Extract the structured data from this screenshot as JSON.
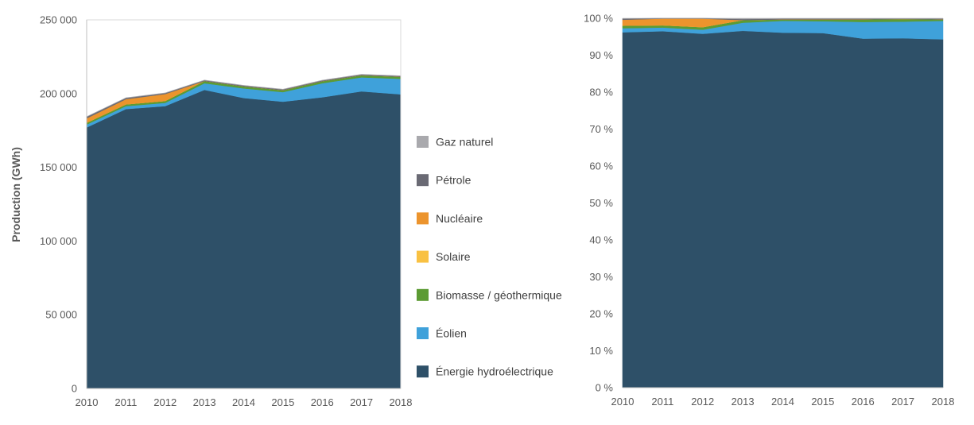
{
  "chart_data": [
    {
      "type": "area",
      "stacked": true,
      "title": "",
      "xlabel": "",
      "ylabel": "Production (GWh)",
      "ylim": [
        0,
        250000
      ],
      "grid": false,
      "x": [
        2010,
        2011,
        2012,
        2013,
        2014,
        2015,
        2016,
        2017,
        2018
      ],
      "x_tick_labels": [
        "2010",
        "2011",
        "2012",
        "2013",
        "2014",
        "2015",
        "2016",
        "2017",
        "2018"
      ],
      "y_ticks": [
        0,
        50000,
        100000,
        150000,
        200000,
        250000
      ],
      "y_tick_labels": [
        "0",
        "50 000",
        "100 000",
        "150 000",
        "200 000",
        "250 000"
      ],
      "series": [
        {
          "name": "Énergie hydroélectrique",
          "color": "#2e5068",
          "values": [
            177000,
            189500,
            191500,
            202500,
            197000,
            194500,
            197500,
            201500,
            199500
          ]
        },
        {
          "name": "Éolien",
          "color": "#3fa1da",
          "values": [
            2000,
            2000,
            2200,
            4500,
            6500,
            6500,
            9500,
            9500,
            10500
          ]
        },
        {
          "name": "Biomasse / géothermique",
          "color": "#5c9b33",
          "values": [
            1200,
            1200,
            1300,
            1500,
            1400,
            1300,
            1400,
            1400,
            1400
          ]
        },
        {
          "name": "Solaire",
          "color": "#f9c142",
          "values": [
            0,
            0,
            0,
            0,
            0,
            0,
            0,
            0,
            0
          ]
        },
        {
          "name": "Nucléaire",
          "color": "#ec942d",
          "values": [
            3000,
            3500,
            4700,
            0,
            0,
            0,
            0,
            0,
            0
          ]
        },
        {
          "name": "Pétrole",
          "color": "#6a6a74",
          "values": [
            1000,
            800,
            600,
            500,
            500,
            500,
            500,
            500,
            500
          ]
        },
        {
          "name": "Gaz naturel",
          "color": "#a9a9ad",
          "values": [
            200,
            200,
            200,
            200,
            200,
            200,
            200,
            200,
            200
          ]
        }
      ]
    },
    {
      "type": "area",
      "stacked": true,
      "percent": true,
      "title": "",
      "xlabel": "",
      "ylabel": "",
      "ylim": [
        0,
        100
      ],
      "grid": false,
      "x": [
        2010,
        2011,
        2012,
        2013,
        2014,
        2015,
        2016,
        2017,
        2018
      ],
      "x_tick_labels": [
        "2010",
        "2011",
        "2012",
        "2013",
        "2014",
        "2015",
        "2016",
        "2017",
        "2018"
      ],
      "y_ticks": [
        0,
        10,
        20,
        30,
        40,
        50,
        60,
        70,
        80,
        90,
        100
      ],
      "y_tick_labels": [
        "0 %",
        "10 %",
        "20 %",
        "30 %",
        "40 %",
        "50 %",
        "60 %",
        "70 %",
        "80 %",
        "90 %",
        "100 %"
      ],
      "series": [
        {
          "name": "Énergie hydroélectrique",
          "color": "#2e5068",
          "values": [
            96.2,
            96.5,
            95.8,
            96.6,
            96.1,
            96.0,
            94.5,
            94.6,
            94.3
          ]
        },
        {
          "name": "Éolien",
          "color": "#3fa1da",
          "values": [
            1.1,
            1.0,
            1.1,
            2.2,
            3.2,
            3.2,
            4.5,
            4.5,
            5.0
          ]
        },
        {
          "name": "Biomasse / géothermique",
          "color": "#5c9b33",
          "values": [
            0.7,
            0.6,
            0.7,
            0.7,
            0.4,
            0.5,
            0.7,
            0.7,
            0.4
          ]
        },
        {
          "name": "Solaire",
          "color": "#f9c142",
          "values": [
            0,
            0,
            0,
            0,
            0,
            0,
            0,
            0,
            0
          ]
        },
        {
          "name": "Nucléaire",
          "color": "#ec942d",
          "values": [
            1.6,
            1.8,
            2.3,
            0,
            0,
            0,
            0,
            0,
            0
          ]
        },
        {
          "name": "Pétrole",
          "color": "#6a6a74",
          "values": [
            0.3,
            0.1,
            0.1,
            0.3,
            0.2,
            0.2,
            0.2,
            0.1,
            0.2
          ]
        },
        {
          "name": "Gaz naturel",
          "color": "#a9a9ad",
          "values": [
            0.1,
            0.0,
            0.0,
            0.2,
            0.1,
            0.1,
            0.1,
            0.1,
            0.1
          ]
        }
      ]
    }
  ],
  "legend": {
    "items": [
      {
        "label": "Gaz naturel",
        "color": "#a9a9ad"
      },
      {
        "label": "Pétrole",
        "color": "#6a6a74"
      },
      {
        "label": "Nucléaire",
        "color": "#ec942d"
      },
      {
        "label": "Solaire",
        "color": "#f9c142"
      },
      {
        "label": "Biomasse / géothermique",
        "color": "#5c9b33"
      },
      {
        "label": "Éolien",
        "color": "#3fa1da"
      },
      {
        "label": "Énergie hydroélectrique",
        "color": "#2e5068"
      }
    ]
  }
}
